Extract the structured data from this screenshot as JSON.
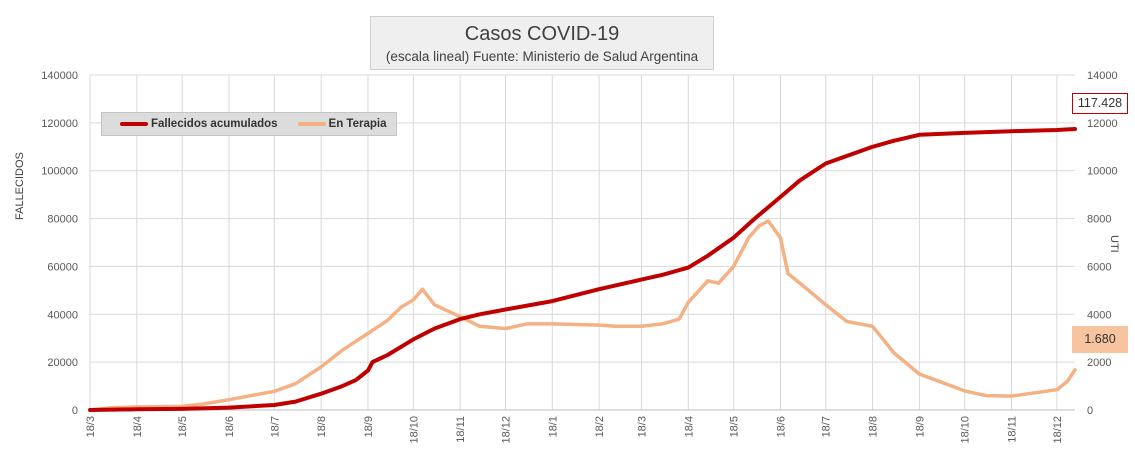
{
  "chart_data": {
    "type": "line",
    "title": "Casos COVID-19",
    "subtitle": "(escala lineal) Fuente: Ministerio de Salud Argentina",
    "y1label": "FALLECIDOS",
    "y2label": "UTI",
    "y1lim": [
      0,
      140000
    ],
    "y2lim": [
      0,
      14000
    ],
    "y1ticks": [
      "0",
      "20000",
      "40000",
      "60000",
      "80000",
      "100000",
      "120000",
      "140000"
    ],
    "y2ticks": [
      "0",
      "2000",
      "4000",
      "6000",
      "8000",
      "10000",
      "12000",
      "14000"
    ],
    "x_tick_labels": [
      "18/3",
      "18/4",
      "18/5",
      "18/6",
      "18/7",
      "18/8",
      "18/9",
      "18/10",
      "18/11",
      "18/12",
      "18/1",
      "18/2",
      "18/3",
      "18/4",
      "18/5",
      "18/6",
      "18/7",
      "18/8",
      "18/9",
      "18/10",
      "18/11",
      "18/12"
    ],
    "x_range": [
      "2020-03-18",
      "2021-12-30"
    ],
    "legend_position": "top-left",
    "grid": true,
    "colors": {
      "fallecidos": "#c00000",
      "terapia": "#f4b183"
    },
    "series": [
      {
        "name": "Fallecidos acumulados",
        "axis": "left",
        "points": [
          [
            "2020-03-18",
            0
          ],
          [
            "2020-04-18",
            300
          ],
          [
            "2020-05-18",
            450
          ],
          [
            "2020-06-18",
            1000
          ],
          [
            "2020-07-18",
            2100
          ],
          [
            "2020-08-01",
            3500
          ],
          [
            "2020-08-18",
            6800
          ],
          [
            "2020-09-01",
            10000
          ],
          [
            "2020-09-10",
            12500
          ],
          [
            "2020-09-18",
            16500
          ],
          [
            "2020-09-21",
            20000
          ],
          [
            "2020-10-01",
            23000
          ],
          [
            "2020-10-18",
            29500
          ],
          [
            "2020-11-01",
            34000
          ],
          [
            "2020-11-18",
            38000
          ],
          [
            "2020-12-01",
            40000
          ],
          [
            "2020-12-18",
            42000
          ],
          [
            "2021-01-18",
            45500
          ],
          [
            "2021-02-18",
            50500
          ],
          [
            "2021-03-18",
            54500
          ],
          [
            "2021-04-01",
            56500
          ],
          [
            "2021-04-18",
            59500
          ],
          [
            "2021-05-01",
            64500
          ],
          [
            "2021-05-18",
            72000
          ],
          [
            "2021-06-01",
            80000
          ],
          [
            "2021-06-18",
            89000
          ],
          [
            "2021-07-01",
            96000
          ],
          [
            "2021-07-18",
            103000
          ],
          [
            "2021-08-18",
            110000
          ],
          [
            "2021-09-01",
            112500
          ],
          [
            "2021-09-18",
            115000
          ],
          [
            "2021-10-18",
            115800
          ],
          [
            "2021-11-18",
            116500
          ],
          [
            "2021-12-18",
            117000
          ],
          [
            "2021-12-30",
            117428
          ]
        ]
      },
      {
        "name": "En Terapia",
        "axis": "right",
        "points": [
          [
            "2020-03-18",
            0
          ],
          [
            "2020-04-01",
            90
          ],
          [
            "2020-04-18",
            130
          ],
          [
            "2020-05-18",
            150
          ],
          [
            "2020-06-01",
            250
          ],
          [
            "2020-06-18",
            430
          ],
          [
            "2020-07-18",
            780
          ],
          [
            "2020-08-01",
            1100
          ],
          [
            "2020-08-18",
            1800
          ],
          [
            "2020-09-01",
            2500
          ],
          [
            "2020-09-18",
            3200
          ],
          [
            "2020-10-01",
            3750
          ],
          [
            "2020-10-10",
            4300
          ],
          [
            "2020-10-18",
            4600
          ],
          [
            "2020-10-24",
            5050
          ],
          [
            "2020-11-01",
            4400
          ],
          [
            "2020-11-18",
            3900
          ],
          [
            "2020-12-01",
            3500
          ],
          [
            "2020-12-18",
            3400
          ],
          [
            "2021-01-01",
            3600
          ],
          [
            "2021-01-18",
            3600
          ],
          [
            "2021-02-18",
            3550
          ],
          [
            "2021-03-01",
            3500
          ],
          [
            "2021-03-18",
            3500
          ],
          [
            "2021-04-01",
            3600
          ],
          [
            "2021-04-12",
            3800
          ],
          [
            "2021-04-18",
            4500
          ],
          [
            "2021-05-01",
            5400
          ],
          [
            "2021-05-08",
            5300
          ],
          [
            "2021-05-18",
            6000
          ],
          [
            "2021-05-28",
            7200
          ],
          [
            "2021-06-04",
            7700
          ],
          [
            "2021-06-10",
            7900
          ],
          [
            "2021-06-18",
            7200
          ],
          [
            "2021-06-23",
            5700
          ],
          [
            "2021-07-01",
            5300
          ],
          [
            "2021-07-18",
            4400
          ],
          [
            "2021-08-01",
            3700
          ],
          [
            "2021-08-18",
            3500
          ],
          [
            "2021-09-01",
            2400
          ],
          [
            "2021-09-18",
            1500
          ],
          [
            "2021-10-01",
            1200
          ],
          [
            "2021-10-18",
            800
          ],
          [
            "2021-11-01",
            600
          ],
          [
            "2021-11-18",
            580
          ],
          [
            "2021-12-01",
            700
          ],
          [
            "2021-12-18",
            850
          ],
          [
            "2021-12-25",
            1200
          ],
          [
            "2021-12-30",
            1680
          ]
        ]
      }
    ],
    "end_labels": {
      "fallecidos": "117.428",
      "terapia": "1.680"
    }
  }
}
